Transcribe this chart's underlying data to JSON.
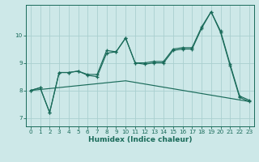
{
  "xlabel": "Humidex (Indice chaleur)",
  "bg_color": "#cde8e8",
  "grid_color": "#aacfcf",
  "line_color": "#1a6b5a",
  "xlim": [
    -0.5,
    23.5
  ],
  "ylim": [
    6.7,
    11.1
  ],
  "xticks": [
    0,
    1,
    2,
    3,
    4,
    5,
    6,
    7,
    8,
    9,
    10,
    11,
    12,
    13,
    14,
    15,
    16,
    17,
    18,
    19,
    20,
    21,
    22,
    23
  ],
  "yticks": [
    7,
    8,
    9,
    10
  ],
  "line1_x": [
    0,
    1,
    2,
    3,
    4,
    5,
    6,
    7,
    8,
    9,
    10,
    11,
    12,
    13,
    14,
    15,
    16,
    17,
    18,
    19,
    20,
    21,
    22,
    23
  ],
  "line1_y": [
    8.0,
    8.1,
    7.2,
    8.65,
    8.65,
    8.7,
    8.55,
    8.5,
    9.35,
    9.4,
    9.9,
    9.0,
    8.95,
    9.0,
    9.0,
    9.45,
    9.5,
    9.5,
    10.25,
    10.85,
    10.1,
    8.9,
    7.75,
    7.6
  ],
  "line2_x": [
    0,
    1,
    2,
    3,
    4,
    5,
    6,
    7,
    8,
    9,
    10,
    11,
    12,
    13,
    14,
    15,
    16,
    17,
    18,
    19,
    20,
    21,
    22,
    23
  ],
  "line2_y": [
    8.0,
    8.1,
    7.2,
    8.65,
    8.65,
    8.7,
    8.58,
    8.58,
    9.45,
    9.4,
    9.9,
    9.0,
    9.0,
    9.05,
    9.05,
    9.5,
    9.55,
    9.55,
    10.3,
    10.85,
    10.15,
    8.95,
    7.8,
    7.65
  ],
  "line3_x": [
    0,
    10,
    23
  ],
  "line3_y": [
    8.0,
    8.35,
    7.6
  ]
}
